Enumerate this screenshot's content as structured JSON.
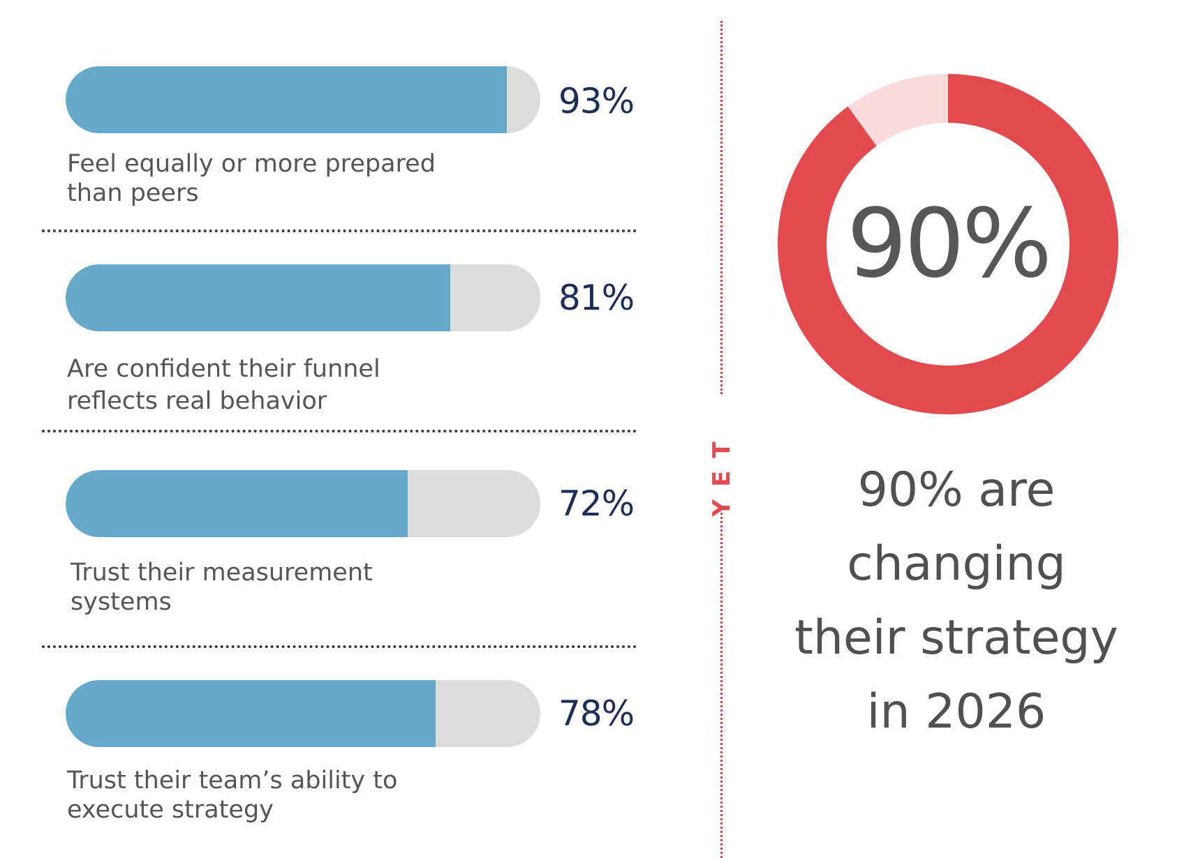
{
  "colors": {
    "bar_fill": "#67a9cb",
    "bar_track": "#dcdcdc",
    "value_text": "#1e2d55",
    "label_text": "#555555",
    "accent_red": "#e34a4f",
    "donut_remainder": "#fadadb"
  },
  "chart_data": [
    {
      "type": "bar",
      "orientation": "horizontal",
      "categories": [
        "Feel equally or more prepared than peers",
        "Are confident their funnel reflects real behavior",
        "Trust their measurement systems",
        "Trust their team’s ability to execute strategy"
      ],
      "values": [
        93,
        81,
        72,
        78
      ],
      "value_labels": [
        "93%",
        "81%",
        "72%",
        "78%"
      ],
      "ylim": [
        0,
        100
      ]
    },
    {
      "type": "pie",
      "variant": "donut",
      "values": [
        90,
        10
      ],
      "center_label": "90%",
      "colors": [
        "#e34a4f",
        "#fadadb"
      ]
    }
  ],
  "bars": [
    {
      "label_line1": "Feel equally or more prepared",
      "label_line2": "than peers",
      "value_text": "93%"
    },
    {
      "label_line1": "Are confident their funnel",
      "label_line2": "reflects real behavior",
      "value_text": "81%"
    },
    {
      "label_line1": "Trust their measurement",
      "label_line2": "systems",
      "value_text": "72%"
    },
    {
      "label_line1": "Trust their team’s ability to",
      "label_line2": "execute strategy",
      "value_text": "78%"
    }
  ],
  "divider": {
    "label": "YET"
  },
  "caption": {
    "line1": "90% are",
    "line2": "changing",
    "line3": "their strategy",
    "line4": "in 2026"
  }
}
